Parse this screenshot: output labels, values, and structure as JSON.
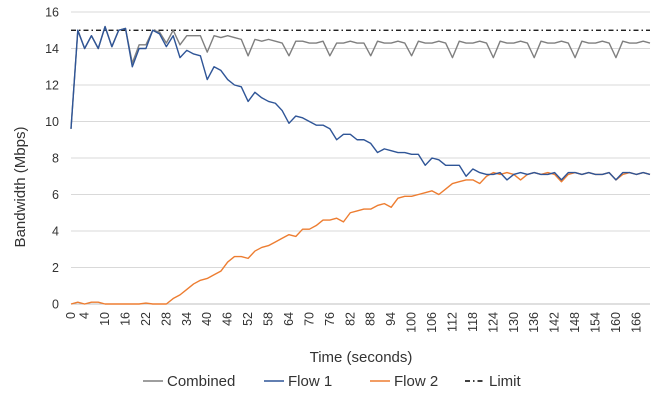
{
  "chart_data": {
    "type": "line",
    "title": "",
    "xlabel": "Time (seconds)",
    "ylabel": "Bandwidth (Mbps)",
    "ylim": [
      0,
      16
    ],
    "yticks": [
      0,
      2,
      4,
      6,
      8,
      10,
      12,
      14,
      16
    ],
    "xlim": [
      0,
      170
    ],
    "x_tick_labels": [
      "0",
      "4",
      "10",
      "16",
      "22",
      "28",
      "34",
      "40",
      "46",
      "52",
      "58",
      "64",
      "70",
      "76",
      "82",
      "88",
      "94",
      "100",
      "106",
      "112",
      "118",
      "124",
      "130",
      "136",
      "142",
      "148",
      "154",
      "160",
      "166"
    ],
    "grid": "horizontal",
    "legend_position": "bottom",
    "x": [
      0,
      2,
      4,
      6,
      8,
      10,
      12,
      14,
      16,
      18,
      20,
      22,
      24,
      26,
      28,
      30,
      32,
      34,
      36,
      38,
      40,
      42,
      44,
      46,
      48,
      50,
      52,
      54,
      56,
      58,
      60,
      62,
      64,
      66,
      68,
      70,
      72,
      74,
      76,
      78,
      80,
      82,
      84,
      86,
      88,
      90,
      92,
      94,
      96,
      98,
      100,
      102,
      104,
      106,
      108,
      110,
      112,
      114,
      116,
      118,
      120,
      122,
      124,
      126,
      128,
      130,
      132,
      134,
      136,
      138,
      140,
      142,
      144,
      146,
      148,
      150,
      152,
      154,
      156,
      158,
      160,
      162,
      164,
      166,
      168,
      170
    ],
    "series": [
      {
        "name": "Combined",
        "color": "#7f7f7f",
        "style": "solid",
        "values": [
          9.6,
          15.0,
          14.0,
          14.7,
          14.0,
          15.2,
          14.1,
          15.0,
          15.1,
          13.2,
          14.2,
          14.2,
          15.0,
          14.9,
          14.3,
          15.0,
          14.2,
          14.7,
          14.7,
          14.7,
          13.8,
          14.7,
          14.6,
          14.7,
          14.6,
          14.5,
          13.6,
          14.5,
          14.4,
          14.5,
          14.4,
          14.3,
          13.6,
          14.4,
          14.4,
          14.3,
          14.3,
          14.4,
          13.6,
          14.3,
          14.3,
          14.4,
          14.3,
          14.3,
          13.6,
          14.4,
          14.3,
          14.3,
          14.4,
          14.3,
          13.6,
          14.4,
          14.3,
          14.3,
          14.4,
          14.3,
          13.5,
          14.4,
          14.3,
          14.3,
          14.4,
          14.3,
          13.5,
          14.4,
          14.3,
          14.3,
          14.4,
          14.3,
          13.5,
          14.4,
          14.3,
          14.3,
          14.4,
          14.3,
          13.5,
          14.4,
          14.3,
          14.3,
          14.4,
          14.3,
          13.5,
          14.4,
          14.3,
          14.3,
          14.4,
          14.3
        ]
      },
      {
        "name": "Flow 1",
        "color": "#2f5597",
        "style": "solid",
        "values": [
          9.6,
          15.0,
          14.0,
          14.7,
          14.0,
          15.2,
          14.1,
          15.0,
          15.1,
          13.0,
          14.0,
          14.0,
          15.0,
          14.8,
          14.1,
          14.7,
          13.5,
          13.9,
          13.7,
          13.6,
          12.3,
          13.0,
          12.8,
          12.3,
          12.0,
          11.9,
          11.1,
          11.6,
          11.3,
          11.1,
          11.0,
          10.6,
          9.9,
          10.3,
          10.2,
          10.0,
          9.8,
          9.8,
          9.6,
          9.0,
          9.3,
          9.3,
          9.0,
          9.0,
          8.8,
          8.3,
          8.5,
          8.4,
          8.3,
          8.3,
          8.2,
          8.2,
          7.6,
          8.0,
          7.9,
          7.6,
          7.6,
          7.6,
          7.0,
          7.4,
          7.2,
          7.1,
          7.1,
          7.2,
          6.8,
          7.1,
          7.2,
          7.1,
          7.2,
          7.1,
          7.1,
          7.2,
          6.8,
          7.2,
          7.2,
          7.1,
          7.2,
          7.1,
          7.1,
          7.2,
          6.8,
          7.2,
          7.2,
          7.1,
          7.2,
          7.1
        ]
      },
      {
        "name": "Flow 2",
        "color": "#ed7d31",
        "style": "solid",
        "values": [
          0.0,
          0.1,
          0.0,
          0.1,
          0.1,
          0.0,
          0.0,
          0.0,
          0.0,
          0.0,
          0.0,
          0.05,
          0.0,
          0.0,
          0.0,
          0.3,
          0.5,
          0.8,
          1.1,
          1.3,
          1.4,
          1.6,
          1.8,
          2.3,
          2.6,
          2.6,
          2.5,
          2.9,
          3.1,
          3.2,
          3.4,
          3.6,
          3.8,
          3.7,
          4.1,
          4.1,
          4.3,
          4.6,
          4.6,
          4.7,
          4.5,
          5.0,
          5.1,
          5.2,
          5.2,
          5.4,
          5.5,
          5.3,
          5.8,
          5.9,
          5.9,
          6.0,
          6.1,
          6.2,
          6.0,
          6.3,
          6.6,
          6.7,
          6.8,
          6.8,
          6.6,
          7.0,
          7.2,
          7.1,
          7.2,
          7.1,
          6.8,
          7.1,
          7.2,
          7.1,
          7.2,
          7.1,
          6.7,
          7.1,
          7.2,
          7.1,
          7.2,
          7.1,
          7.1,
          7.2,
          6.8,
          7.1,
          7.2,
          7.1,
          7.2,
          7.1
        ]
      },
      {
        "name": "Limit",
        "color": "#000000",
        "style": "dash-dot",
        "values": [
          15,
          15,
          15,
          15,
          15,
          15,
          15,
          15,
          15,
          15,
          15,
          15,
          15,
          15,
          15,
          15,
          15,
          15,
          15,
          15,
          15,
          15,
          15,
          15,
          15,
          15,
          15,
          15,
          15,
          15,
          15,
          15,
          15,
          15,
          15,
          15,
          15,
          15,
          15,
          15,
          15,
          15,
          15,
          15,
          15,
          15,
          15,
          15,
          15,
          15,
          15,
          15,
          15,
          15,
          15,
          15,
          15,
          15,
          15,
          15,
          15,
          15,
          15,
          15,
          15,
          15,
          15,
          15,
          15,
          15,
          15,
          15,
          15,
          15,
          15,
          15,
          15,
          15,
          15,
          15,
          15,
          15,
          15,
          15,
          15,
          15
        ]
      }
    ]
  }
}
